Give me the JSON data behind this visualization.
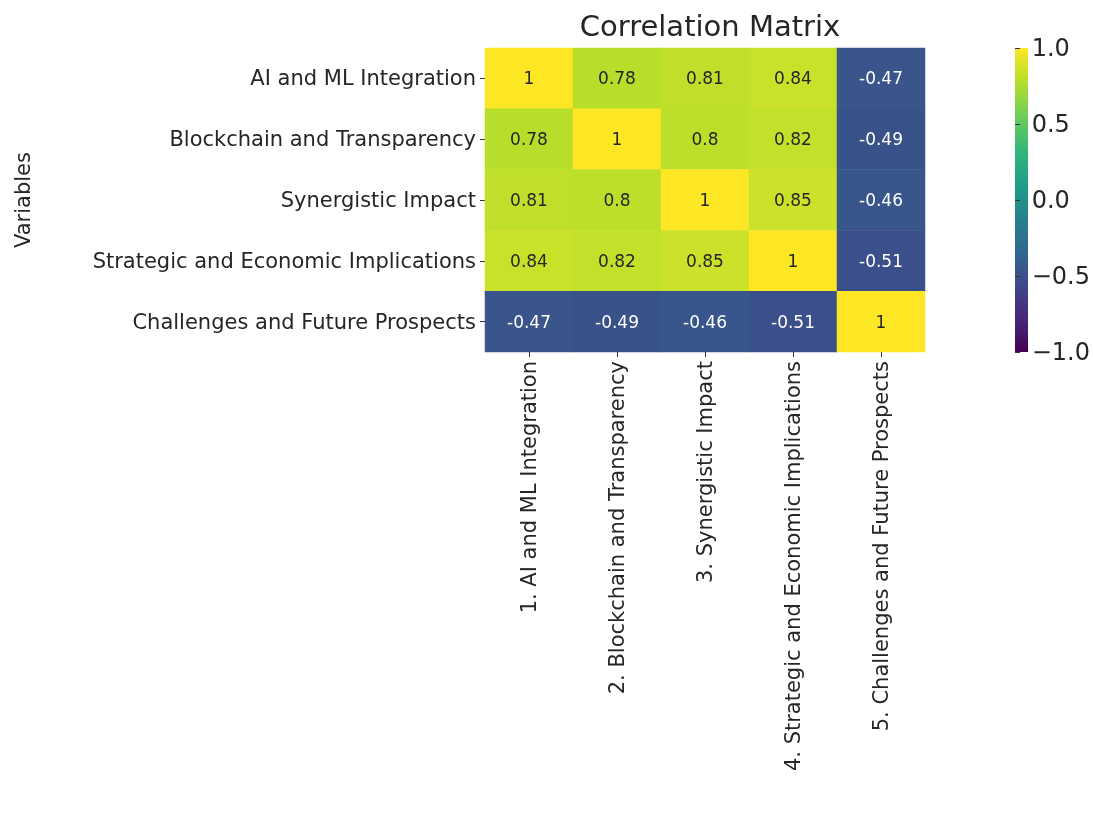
{
  "chart_data": {
    "type": "heatmap",
    "title": "Correlation Matrix",
    "ylabel": "Variables",
    "categories": [
      "1. AI and ML Integration",
      "2. Blockchain and Transparency",
      "3. Synergistic Impact",
      "4. Strategic and Economic Implications",
      "5. Challenges and Future Prospects"
    ],
    "y_categories": [
      "AI and ML Integration",
      "Blockchain and Transparency",
      "Synergistic Impact",
      "Strategic and Economic Implications",
      "Challenges and Future Prospects"
    ],
    "cells": [
      [
        1,
        0.78,
        0.81,
        0.84,
        -0.47
      ],
      [
        0.78,
        1,
        0.8,
        0.82,
        -0.49
      ],
      [
        0.81,
        0.8,
        1,
        0.85,
        -0.46
      ],
      [
        0.84,
        0.82,
        0.85,
        1,
        -0.51
      ],
      [
        -0.47,
        -0.49,
        -0.46,
        -0.51,
        1
      ]
    ],
    "clim": [
      -1,
      1
    ],
    "cticks": [
      {
        "value": -1,
        "label": "−1.0"
      },
      {
        "value": -0.5,
        "label": "−0.5"
      },
      {
        "value": 0,
        "label": "0.0"
      },
      {
        "value": 0.5,
        "label": "0.5"
      },
      {
        "value": 1,
        "label": "1.0"
      }
    ],
    "data_labels": true
  }
}
